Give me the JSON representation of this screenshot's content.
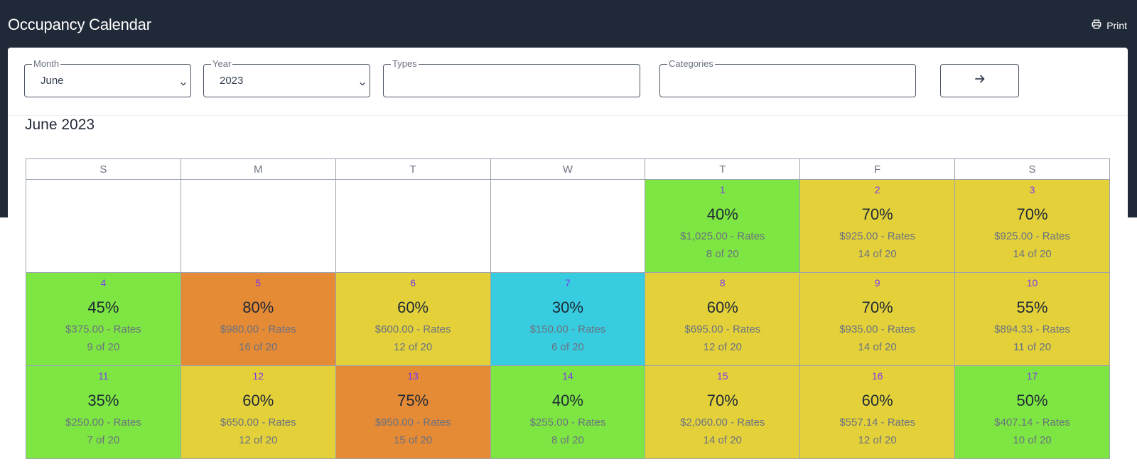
{
  "header": {
    "title": "Occupancy Calendar",
    "print_label": "Print"
  },
  "filters": {
    "month": {
      "label": "Month",
      "value": "June"
    },
    "year": {
      "label": "Year",
      "value": "2023"
    },
    "types": {
      "label": "Types",
      "value": ""
    },
    "categories": {
      "label": "Categories",
      "value": ""
    }
  },
  "calendar": {
    "title": "June 2023",
    "weekdays": [
      "S",
      "M",
      "T",
      "W",
      "T",
      "F",
      "S"
    ],
    "colors": {
      "green": "#7ee642",
      "yellow": "#e4d13a",
      "orange": "#e58a35",
      "cyan": "#37ccdf"
    },
    "weeks": [
      [
        null,
        null,
        null,
        null,
        {
          "day": "1",
          "pct": "40%",
          "rate": "$1,025.00 - Rates",
          "count": "8 of 20",
          "color": "green"
        },
        {
          "day": "2",
          "pct": "70%",
          "rate": "$925.00 - Rates",
          "count": "14 of 20",
          "color": "yellow"
        },
        {
          "day": "3",
          "pct": "70%",
          "rate": "$925.00 - Rates",
          "count": "14 of 20",
          "color": "yellow"
        }
      ],
      [
        {
          "day": "4",
          "pct": "45%",
          "rate": "$375.00 - Rates",
          "count": "9 of 20",
          "color": "green"
        },
        {
          "day": "5",
          "pct": "80%",
          "rate": "$980.00 - Rates",
          "count": "16 of 20",
          "color": "orange"
        },
        {
          "day": "6",
          "pct": "60%",
          "rate": "$600.00 - Rates",
          "count": "12 of 20",
          "color": "yellow"
        },
        {
          "day": "7",
          "pct": "30%",
          "rate": "$150.00 - Rates",
          "count": "6 of 20",
          "color": "cyan"
        },
        {
          "day": "8",
          "pct": "60%",
          "rate": "$695.00 - Rates",
          "count": "12 of 20",
          "color": "yellow"
        },
        {
          "day": "9",
          "pct": "70%",
          "rate": "$935.00 - Rates",
          "count": "14 of 20",
          "color": "yellow"
        },
        {
          "day": "10",
          "pct": "55%",
          "rate": "$894.33 - Rates",
          "count": "11 of 20",
          "color": "yellow"
        }
      ],
      [
        {
          "day": "11",
          "pct": "35%",
          "rate": "$250.00 - Rates",
          "count": "7 of 20",
          "color": "green"
        },
        {
          "day": "12",
          "pct": "60%",
          "rate": "$650.00 - Rates",
          "count": "12 of 20",
          "color": "yellow"
        },
        {
          "day": "13",
          "pct": "75%",
          "rate": "$950.00 - Rates",
          "count": "15 of 20",
          "color": "orange"
        },
        {
          "day": "14",
          "pct": "40%",
          "rate": "$255.00 - Rates",
          "count": "8 of 20",
          "color": "green"
        },
        {
          "day": "15",
          "pct": "70%",
          "rate": "$2,060.00 - Rates",
          "count": "14 of 20",
          "color": "yellow"
        },
        {
          "day": "16",
          "pct": "60%",
          "rate": "$557.14 - Rates",
          "count": "12 of 20",
          "color": "yellow"
        },
        {
          "day": "17",
          "pct": "50%",
          "rate": "$407.14 - Rates",
          "count": "10 of 20",
          "color": "green"
        }
      ]
    ]
  }
}
